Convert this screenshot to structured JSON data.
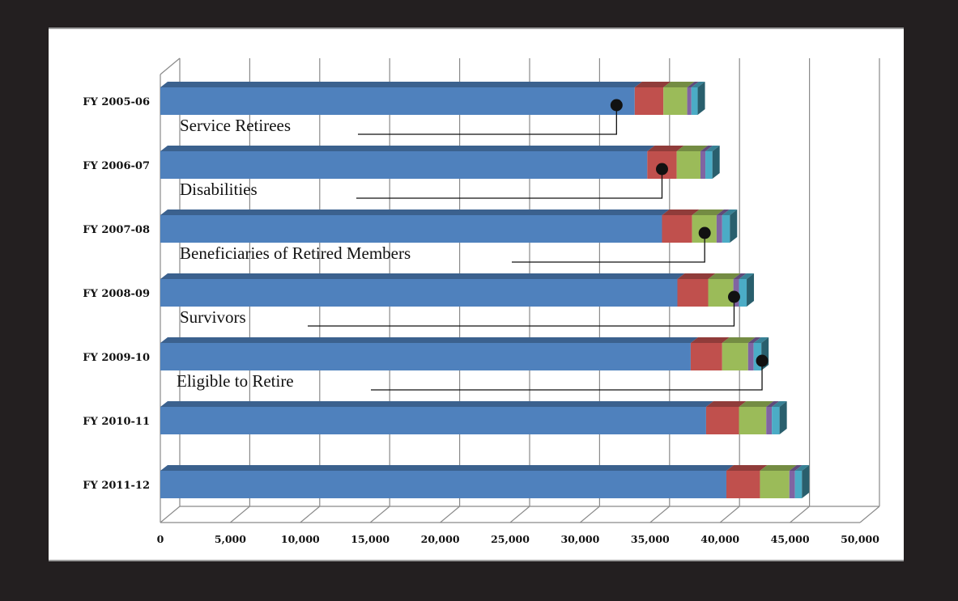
{
  "chart_data": {
    "type": "bar",
    "orientation": "horizontal",
    "stacked": true,
    "three_d": true,
    "categories": [
      "FY 2005-06",
      "FY 2006-07",
      "FY 2007-08",
      "FY 2008-09",
      "FY 2009-10",
      "FY 2010-11",
      "FY 2011-12"
    ],
    "series": [
      {
        "values": [
          33900,
          34800,
          35850,
          36950,
          37900,
          39000,
          40450
        ],
        "color": "#4f81bd"
      },
      {
        "values": [
          2050,
          2100,
          2150,
          2200,
          2250,
          2350,
          2400
        ],
        "color": "#c0504d"
      },
      {
        "values": [
          1700,
          1700,
          1750,
          1800,
          1850,
          1950,
          2100
        ],
        "color": "#9bbb59"
      },
      {
        "values": [
          300,
          350,
          400,
          400,
          400,
          400,
          400
        ],
        "color": "#8064a2"
      },
      {
        "values": [
          450,
          500,
          550,
          550,
          550,
          550,
          500
        ],
        "color": "#4bacc6"
      }
    ],
    "xlim": [
      0,
      50000
    ],
    "xticks": [
      "0",
      "5,000",
      "10,000",
      "15,000",
      "20,000",
      "25,000",
      "30,000",
      "35,000",
      "40,000",
      "45,000",
      "50,000"
    ],
    "grid": true,
    "callouts": [
      {
        "label": "Service Retirees",
        "category": 0,
        "value": 32600
      },
      {
        "label": "Disabilities",
        "category": 1,
        "value": 35850
      },
      {
        "label": "Beneficiaries of Retired Members",
        "category": 2,
        "value": 38900
      },
      {
        "label": "Survivors",
        "category": 3,
        "value": 41000
      },
      {
        "label": "Eligible to Retire",
        "category": 4,
        "value": 43000
      }
    ]
  }
}
